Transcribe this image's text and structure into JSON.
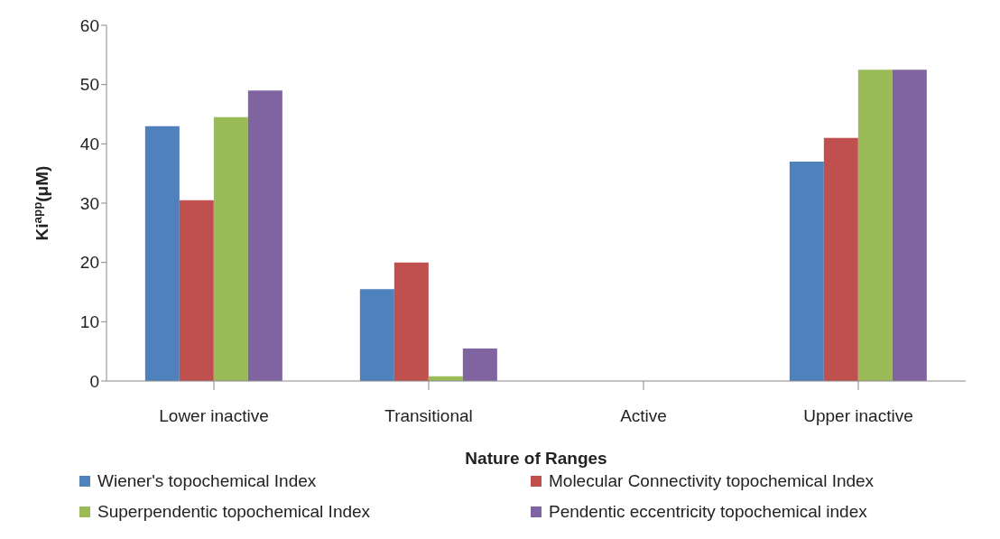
{
  "chart_data": {
    "type": "bar",
    "xlabel": "Nature of Ranges",
    "ylabel": "Ki$^{app}$(μM)",
    "categories": [
      "Lower inactive",
      "Transitional",
      "Active",
      "Upper inactive"
    ],
    "series": [
      {
        "name": "Wiener's topochemical Index",
        "color": "#4f81bd",
        "values": [
          43,
          15.5,
          0,
          37
        ]
      },
      {
        "name": "Molecular Connectivity topochemical Index",
        "color": "#c0504d",
        "values": [
          30.5,
          20,
          0,
          41
        ]
      },
      {
        "name": "Superpendentic topochemical Index",
        "color": "#9bbb59",
        "values": [
          44.5,
          0.8,
          0,
          52.5
        ]
      },
      {
        "name": "Pendentic eccentricity topochemical index",
        "color": "#8064a2",
        "values": [
          49,
          5.5,
          0,
          52.5
        ]
      }
    ],
    "ylim": [
      0,
      60
    ],
    "yticks": [
      0,
      10,
      20,
      30,
      40,
      50,
      60
    ],
    "grid": false,
    "legend": "bottom"
  }
}
